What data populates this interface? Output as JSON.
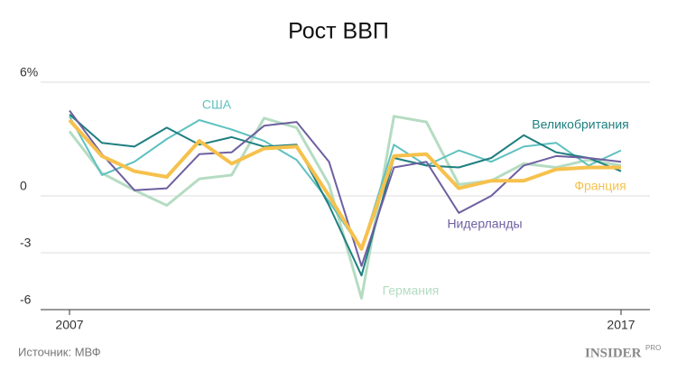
{
  "chart_data": {
    "type": "line",
    "title": "Рост ВВП",
    "categories": [
      "2007",
      null,
      null,
      null,
      null,
      null,
      null,
      null,
      null,
      null,
      null,
      null,
      null,
      null,
      null,
      null,
      null,
      "2017"
    ],
    "ylim": [
      -6,
      6
    ],
    "yticks": [
      -6,
      -3,
      0,
      {
        "value": 6,
        "label": "6%"
      }
    ],
    "grid": true,
    "series": [
      {
        "name": "США",
        "color": "#5fc1c0",
        "values": [
          4.2,
          1.1,
          1.8,
          3.0,
          4.0,
          3.5,
          2.9,
          1.9,
          -0.3,
          -2.8,
          2.7,
          1.6,
          2.4,
          1.8,
          2.6,
          2.8,
          1.6,
          2.4
        ]
      },
      {
        "name": "Великобритания",
        "color": "#1f7f80",
        "values": [
          4.3,
          2.8,
          2.6,
          3.6,
          2.7,
          3.1,
          2.6,
          2.7,
          -0.5,
          -4.2,
          2.0,
          1.6,
          1.5,
          2.0,
          3.2,
          2.3,
          2.0,
          1.3
        ]
      },
      {
        "name": "Нидерланды",
        "color": "#6e5fa0",
        "values": [
          4.5,
          2.2,
          0.3,
          0.4,
          2.2,
          2.3,
          3.7,
          3.9,
          1.8,
          -3.7,
          1.5,
          1.8,
          -0.9,
          0.0,
          1.6,
          2.1,
          2.0,
          1.8
        ]
      },
      {
        "name": "Германия",
        "color": "#b5dcc2",
        "values": [
          3.4,
          1.2,
          0.3,
          -0.5,
          0.9,
          1.1,
          4.1,
          3.6,
          0.6,
          -5.4,
          4.2,
          3.9,
          0.6,
          0.8,
          1.7,
          1.5,
          1.9,
          1.6
        ]
      },
      {
        "name": "Франция",
        "color": "#f6c14c",
        "values": [
          4.0,
          2.1,
          1.3,
          1.0,
          2.9,
          1.7,
          2.5,
          2.6,
          0.0,
          -2.8,
          2.1,
          2.2,
          0.4,
          0.8,
          0.8,
          1.4,
          1.5,
          1.5
        ]
      }
    ],
    "source": "Источник: МВФ",
    "brand": "INSIDER",
    "brand_suffix": "PRO"
  }
}
